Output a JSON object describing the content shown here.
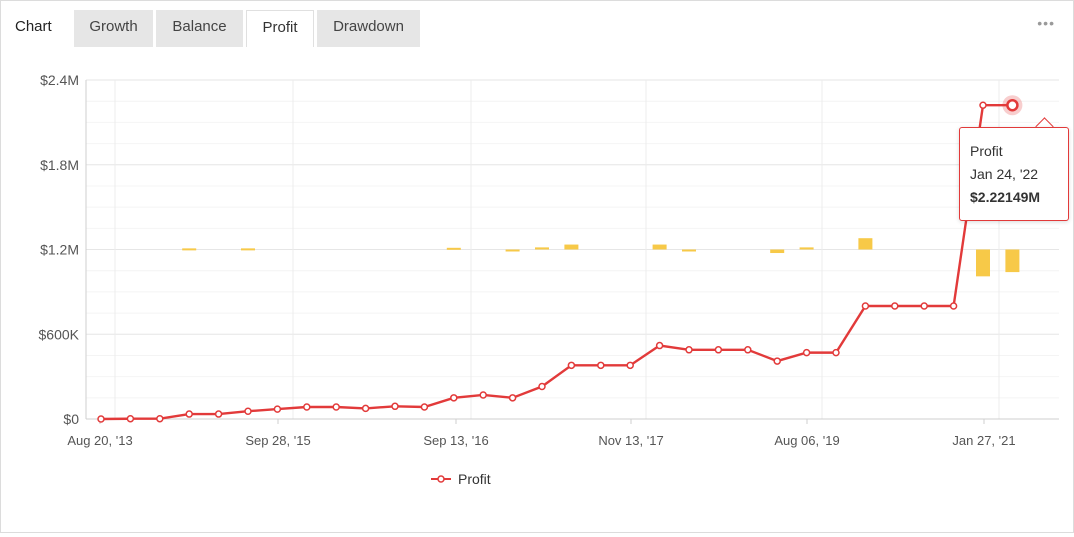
{
  "tabs": {
    "title": "Chart",
    "items": [
      {
        "label": "Growth",
        "active": false
      },
      {
        "label": "Balance",
        "active": false
      },
      {
        "label": "Profit",
        "active": true
      },
      {
        "label": "Drawdown",
        "active": false
      }
    ],
    "more_icon": "more-horizontal-icon"
  },
  "tooltip": {
    "series": "Profit",
    "date": "Jan 24, '22",
    "value": "$2.22149M"
  },
  "colors": {
    "line": "#e23a3a",
    "bars": "#f7c948",
    "grid": "#ececec"
  },
  "chart_data": {
    "type": "line",
    "title": "",
    "xlabel": "",
    "ylabel": "",
    "ylim": [
      0,
      2400000
    ],
    "y_ticks": [
      "$0",
      "$600K",
      "$1.2M",
      "$1.8M",
      "$2.4M"
    ],
    "x_tick_labels": [
      "Aug 20, '13",
      "Sep 28, '15",
      "Sep 13, '16",
      "Nov 13, '17",
      "Aug 06, '19",
      "Jan 27, '21"
    ],
    "legend": {
      "position": "bottom-center",
      "entries": [
        "Profit"
      ]
    },
    "grid": true,
    "series": [
      {
        "name": "Profit",
        "values": [
          0,
          2000,
          2000,
          35000,
          35000,
          55000,
          70000,
          85000,
          85000,
          75000,
          90000,
          85000,
          150000,
          170000,
          150000,
          230000,
          380000,
          380000,
          380000,
          520000,
          490000,
          490000,
          490000,
          410000,
          470000,
          470000,
          800000,
          800000,
          800000,
          800000,
          2221490,
          2221490
        ]
      }
    ],
    "bar_series": {
      "baseline": 1200000,
      "bars": [
        {
          "index": 3,
          "value": 8000
        },
        {
          "index": 5,
          "value": 8000
        },
        {
          "index": 12,
          "value": 12000
        },
        {
          "index": 14,
          "value": -8000
        },
        {
          "index": 15,
          "value": 15000
        },
        {
          "index": 16,
          "value": 35000
        },
        {
          "index": 19,
          "value": 35000
        },
        {
          "index": 20,
          "value": -10000
        },
        {
          "index": 23,
          "value": -25000
        },
        {
          "index": 24,
          "value": 15000
        },
        {
          "index": 26,
          "value": 80000
        },
        {
          "index": 30,
          "value": -190000
        },
        {
          "index": 31,
          "value": -160000
        }
      ]
    }
  }
}
